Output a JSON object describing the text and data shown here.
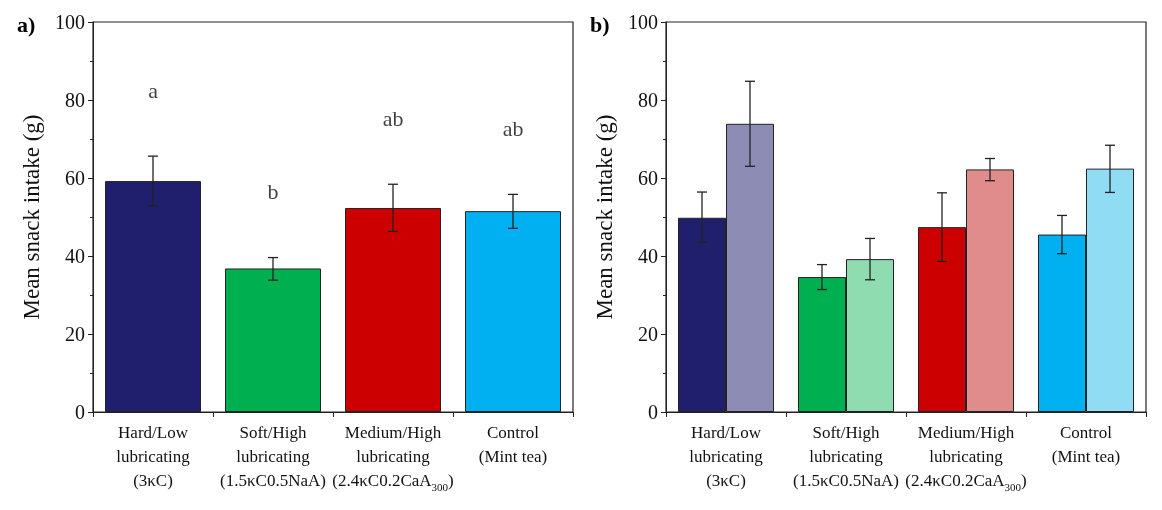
{
  "chart_data": [
    {
      "type": "bar",
      "title": "a)",
      "ylabel": "Mean snack intake (g)",
      "categories": [
        "Hard/Low\nlubricating\n(3κC)",
        "Soft/High\nlubricating\n(1.5κC0.5NaA)",
        "Medium/High\nlubricating\n(2.4κC0.2CaA$_{300}$)",
        "Control\n(Mint tea)"
      ],
      "values": [
        59.2,
        36.8,
        52.3,
        51.5
      ],
      "errors": [
        [
          52.8,
          65.6
        ],
        [
          33.8,
          39.6
        ],
        [
          46.3,
          58.4
        ],
        [
          47.1,
          55.8
        ]
      ],
      "colors": [
        "#1f1f6e",
        "#00b050",
        "#cc0000",
        "#00b0f0"
      ],
      "ylim": [
        0,
        100
      ],
      "yticks": [
        0,
        20,
        40,
        60,
        80,
        100
      ],
      "grid": false,
      "annotations": [
        "a",
        "b",
        "ab",
        "ab"
      ]
    },
    {
      "type": "bar",
      "title": "b)",
      "ylabel": "Mean snack intake (g)",
      "categories": [
        "Hard/Low\nlubricating\n(3κC)",
        "Soft/High\nlubricating\n(1.5κC0.5NaA)",
        "Medium/High\nlubricating\n(2.4κC0.2CaA$_{300}$)",
        "Control\n(Mint tea)"
      ],
      "series": [
        {
          "colors": [
            "#1f1f6e",
            "#00b050",
            "#cc0000",
            "#00b0f0"
          ],
          "values": [
            49.8,
            34.6,
            47.4,
            45.5
          ],
          "errors": [
            [
              43.5,
              56.4
            ],
            [
              31.4,
              37.8
            ],
            [
              38.6,
              56.2
            ],
            [
              40.6,
              50.4
            ]
          ]
        },
        {
          "colors": [
            "#8c8cb4",
            "#8fdcb0",
            "#e08c8c",
            "#8fdcf4"
          ],
          "values": [
            73.9,
            39.2,
            62.2,
            62.4
          ],
          "errors": [
            [
              63,
              84.8
            ],
            [
              33.9,
              44.5
            ],
            [
              59.3,
              65
            ],
            [
              56.3,
              68.4
            ]
          ]
        }
      ],
      "ylim": [
        0,
        100
      ],
      "yticks": [
        0,
        20,
        40,
        60,
        80,
        100
      ],
      "grid": false
    }
  ]
}
